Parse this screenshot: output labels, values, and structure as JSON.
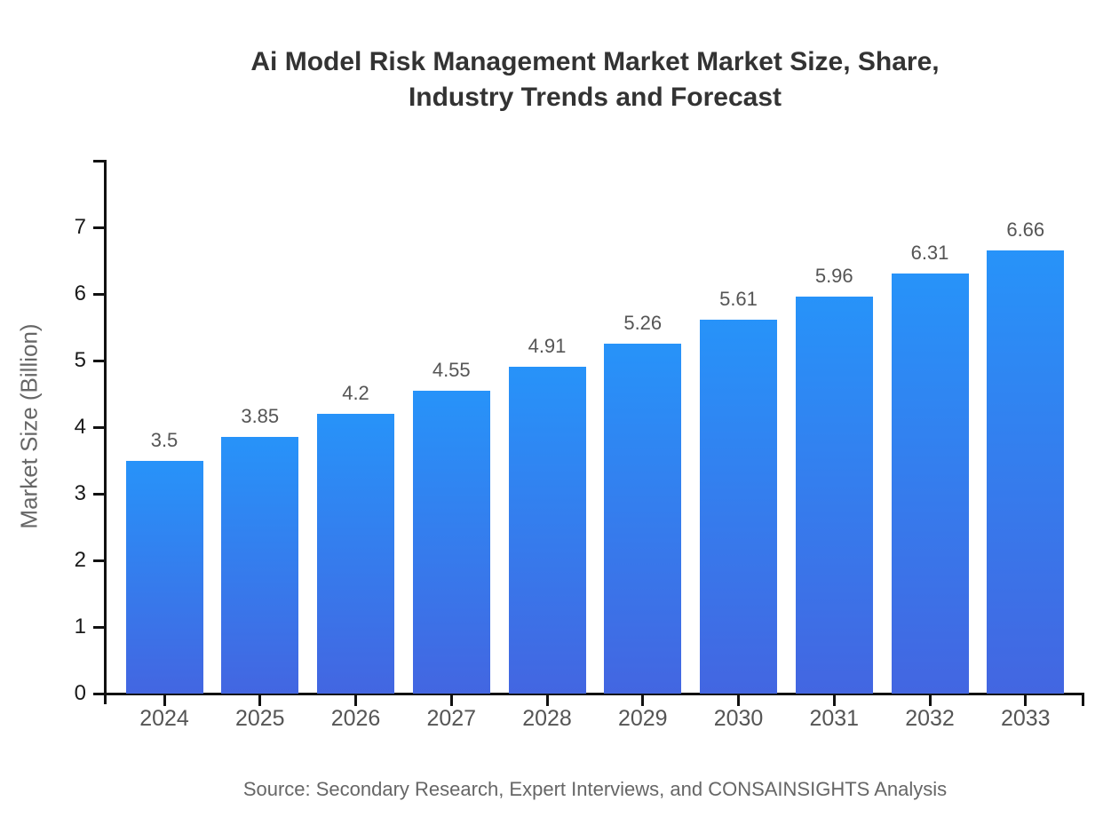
{
  "chart_data": {
    "type": "bar",
    "title": "Ai Model Risk Management Market Market Size, Share, Industry Trends and Forecast",
    "categories": [
      "2024",
      "2025",
      "2026",
      "2027",
      "2028",
      "2029",
      "2030",
      "2031",
      "2032",
      "2033"
    ],
    "values": [
      3.5,
      3.85,
      4.2,
      4.55,
      4.91,
      5.26,
      5.61,
      5.96,
      6.31,
      6.66
    ],
    "value_labels": [
      "3.5",
      "3.85",
      "4.2",
      "4.55",
      "4.91",
      "5.26",
      "5.61",
      "5.96",
      "6.31",
      "6.66"
    ],
    "xlabel": "",
    "ylabel": "Market Size (Billion)",
    "ylim": [
      0,
      8
    ],
    "yticks": [
      0,
      1,
      2,
      3,
      4,
      5,
      6,
      7
    ],
    "grid": false,
    "legend": null,
    "source": "Source: Secondary Research, Expert Interviews, and CONSAINSIGHTS Analysis",
    "colors": {
      "bar_gradient_top": "#2793F9",
      "bar_gradient_bottom": "#4366E1",
      "axis": "#111111",
      "title_text": "#333333",
      "value_label_text": "#555555",
      "x_tick_text": "#555555",
      "y_tick_text": "#1a1a1a",
      "y_axis_title_text": "#666666",
      "source_text": "#666666",
      "background": "#ffffff"
    }
  }
}
